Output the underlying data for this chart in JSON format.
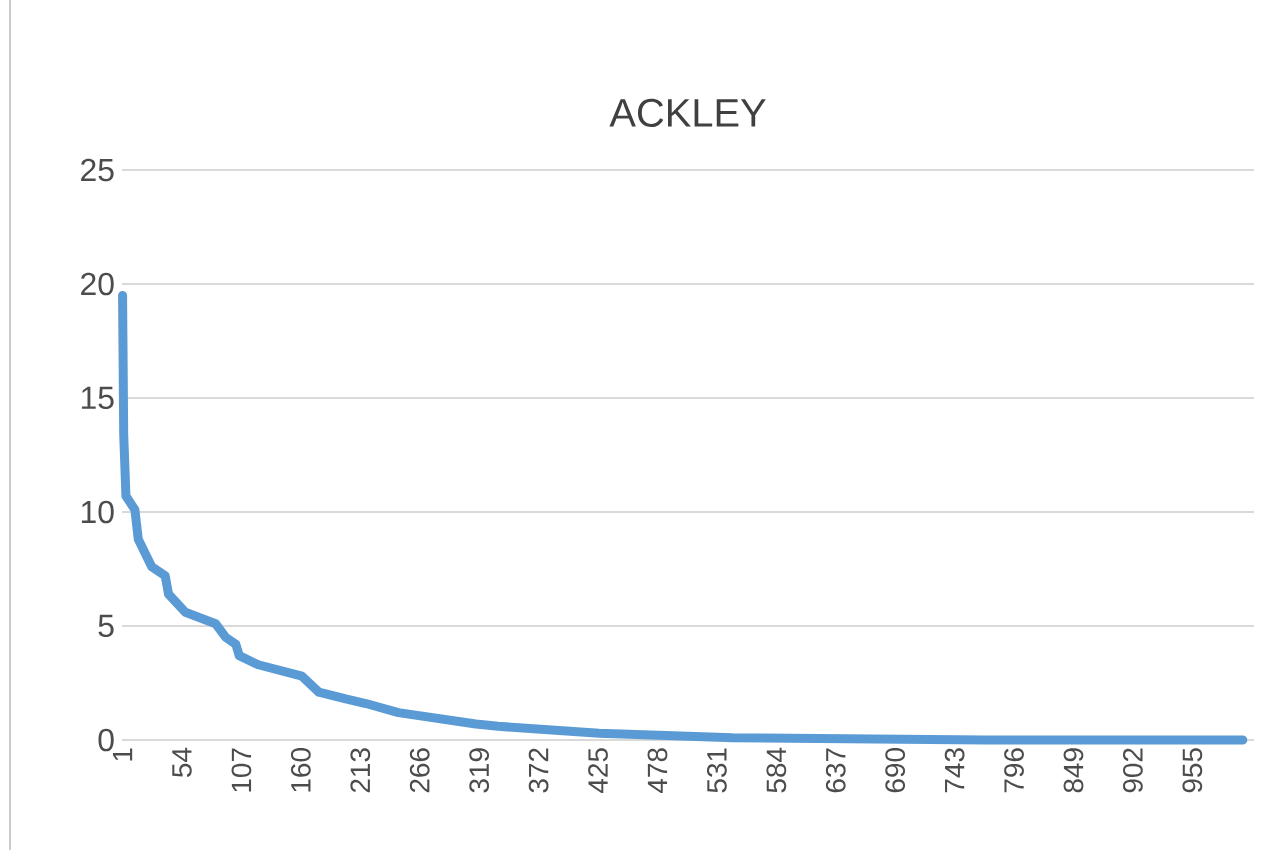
{
  "chart_data": {
    "type": "line",
    "title": "ACKLEY",
    "x": [
      1,
      2,
      4,
      12,
      15,
      27,
      39,
      42,
      57,
      84,
      93,
      102,
      105,
      122,
      161,
      176,
      200,
      218,
      247,
      316,
      336,
      426,
      545,
      770,
      1000
    ],
    "series": [
      {
        "color": "#5b9bd5",
        "values": [
          19.5,
          13.4,
          10.7,
          10.1,
          8.8,
          7.6,
          7.2,
          6.4,
          5.6,
          5.1,
          4.5,
          4.2,
          3.7,
          3.3,
          2.8,
          2.1,
          1.8,
          1.6,
          1.2,
          0.7,
          0.6,
          0.3,
          0.1,
          0,
          0
        ]
      }
    ],
    "xlim": [
      0.5,
      1010
    ],
    "xticks": [
      1,
      54,
      107,
      160,
      213,
      266,
      319,
      372,
      425,
      478,
      531,
      584,
      637,
      690,
      743,
      796,
      849,
      902,
      955
    ],
    "ylim": [
      0,
      25
    ],
    "yticks": [
      0,
      5,
      10,
      15,
      20,
      25
    ],
    "grid": "y",
    "line_style": "solid"
  }
}
